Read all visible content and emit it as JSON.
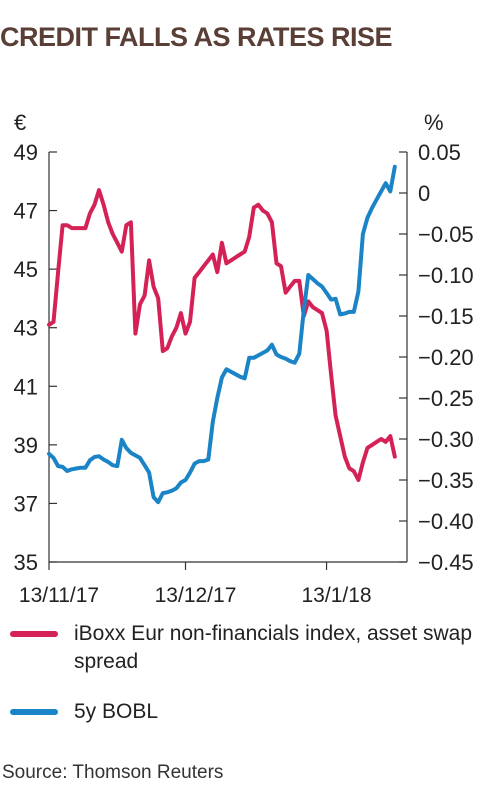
{
  "title": "CREDIT FALLS AS RATES RISE",
  "source": "Source: Thomson Reuters",
  "colors": {
    "title": "#5a3f37",
    "iboxx": "#d42257",
    "bobl": "#1a84c6"
  },
  "chart_data": {
    "type": "line",
    "title": "CREDIT FALLS AS RATES RISE",
    "left_axis": {
      "unit": "€",
      "min": 35,
      "max": 49,
      "ticks": [
        49,
        47,
        45,
        43,
        41,
        39,
        37,
        35
      ],
      "tick_labels": [
        "49",
        "47",
        "45",
        "43",
        "41",
        "39",
        "37",
        "35"
      ]
    },
    "right_axis": {
      "unit": "%",
      "min": -0.45,
      "max": 0.05,
      "ticks": [
        0.05,
        0,
        -0.05,
        -0.1,
        -0.15,
        -0.2,
        -0.25,
        -0.3,
        -0.35,
        -0.4,
        -0.45
      ],
      "tick_labels": [
        "0.05",
        "0",
        "−0.05",
        "−0.10",
        "−0.15",
        "−0.20",
        "−0.25",
        "−0.30",
        "−0.35",
        "−0.40",
        "−0.45"
      ]
    },
    "x_axis": {
      "tick_labels": [
        "13/11/17",
        "13/12/17",
        "13/1/18"
      ],
      "tick_days": [
        0,
        30,
        61
      ],
      "range_days": [
        0,
        80
      ]
    },
    "grid": false,
    "legend_position": "bottom",
    "series": [
      {
        "name": "iBoxx Eur non-financials index, asset swap spread",
        "axis": "left",
        "color": "#d42257",
        "points": [
          [
            0,
            43.1
          ],
          [
            1,
            43.2
          ],
          [
            2,
            44.9
          ],
          [
            3,
            46.5
          ],
          [
            4,
            46.5
          ],
          [
            5,
            46.4
          ],
          [
            6,
            46.4
          ],
          [
            7,
            46.4
          ],
          [
            8,
            46.4
          ],
          [
            9,
            46.9
          ],
          [
            10,
            47.2
          ],
          [
            11,
            47.7
          ],
          [
            12,
            47.2
          ],
          [
            13,
            46.6
          ],
          [
            14,
            46.2
          ],
          [
            15,
            45.9
          ],
          [
            16,
            45.6
          ],
          [
            17,
            46.5
          ],
          [
            18,
            46.6
          ],
          [
            19,
            42.8
          ],
          [
            20,
            43.8
          ],
          [
            21,
            44.1
          ],
          [
            22,
            45.3
          ],
          [
            23,
            44.4
          ],
          [
            24,
            44.0
          ],
          [
            25,
            42.2
          ],
          [
            26,
            42.3
          ],
          [
            27,
            42.7
          ],
          [
            28,
            43.0
          ],
          [
            29,
            43.5
          ],
          [
            30,
            42.8
          ],
          [
            31,
            43.2
          ],
          [
            32,
            44.7
          ],
          [
            33,
            44.9
          ],
          [
            34,
            45.1
          ],
          [
            35,
            45.3
          ],
          [
            36,
            45.5
          ],
          [
            37,
            44.9
          ],
          [
            38,
            45.9
          ],
          [
            39,
            45.2
          ],
          [
            40,
            45.3
          ],
          [
            41,
            45.4
          ],
          [
            42,
            45.5
          ],
          [
            43,
            45.6
          ],
          [
            44,
            46.1
          ],
          [
            45,
            47.1
          ],
          [
            46,
            47.2
          ],
          [
            47,
            47.0
          ],
          [
            48,
            46.9
          ],
          [
            49,
            46.6
          ],
          [
            50,
            45.2
          ],
          [
            51,
            45.1
          ],
          [
            52,
            44.2
          ],
          [
            53,
            44.4
          ],
          [
            54,
            44.6
          ],
          [
            55,
            44.6
          ],
          [
            56,
            43.4
          ],
          [
            57,
            43.9
          ],
          [
            58,
            43.7
          ],
          [
            59,
            43.6
          ],
          [
            60,
            43.5
          ],
          [
            61,
            42.9
          ],
          [
            62,
            41.4
          ],
          [
            63,
            40.0
          ],
          [
            64,
            39.3
          ],
          [
            65,
            38.6
          ],
          [
            66,
            38.2
          ],
          [
            67,
            38.1
          ],
          [
            68,
            37.8
          ],
          [
            69,
            38.4
          ],
          [
            70,
            38.9
          ],
          [
            71,
            39.0
          ],
          [
            72,
            39.1
          ],
          [
            73,
            39.2
          ],
          [
            74,
            39.1
          ],
          [
            75,
            39.3
          ],
          [
            76,
            38.6
          ]
        ]
      },
      {
        "name": "5y BOBL",
        "axis": "right",
        "color": "#1a84c6",
        "points": [
          [
            0,
            -0.318
          ],
          [
            1,
            -0.323
          ],
          [
            2,
            -0.333
          ],
          [
            3,
            -0.334
          ],
          [
            4,
            -0.339
          ],
          [
            5,
            -0.337
          ],
          [
            6,
            -0.336
          ],
          [
            7,
            -0.335
          ],
          [
            8,
            -0.335
          ],
          [
            9,
            -0.326
          ],
          [
            10,
            -0.322
          ],
          [
            11,
            -0.321
          ],
          [
            12,
            -0.325
          ],
          [
            13,
            -0.328
          ],
          [
            14,
            -0.332
          ],
          [
            15,
            -0.333
          ],
          [
            16,
            -0.301
          ],
          [
            17,
            -0.311
          ],
          [
            18,
            -0.317
          ],
          [
            19,
            -0.32
          ],
          [
            20,
            -0.323
          ],
          [
            21,
            -0.332
          ],
          [
            22,
            -0.341
          ],
          [
            23,
            -0.371
          ],
          [
            24,
            -0.377
          ],
          [
            25,
            -0.366
          ],
          [
            26,
            -0.365
          ],
          [
            27,
            -0.363
          ],
          [
            28,
            -0.36
          ],
          [
            29,
            -0.353
          ],
          [
            30,
            -0.35
          ],
          [
            31,
            -0.341
          ],
          [
            32,
            -0.33
          ],
          [
            33,
            -0.327
          ],
          [
            34,
            -0.327
          ],
          [
            35,
            -0.325
          ],
          [
            36,
            -0.279
          ],
          [
            37,
            -0.25
          ],
          [
            38,
            -0.225
          ],
          [
            39,
            -0.215
          ],
          [
            40,
            -0.218
          ],
          [
            41,
            -0.221
          ],
          [
            42,
            -0.224
          ],
          [
            43,
            -0.226
          ],
          [
            44,
            -0.201
          ],
          [
            45,
            -0.201
          ],
          [
            46,
            -0.198
          ],
          [
            47,
            -0.195
          ],
          [
            48,
            -0.192
          ],
          [
            49,
            -0.185
          ],
          [
            50,
            -0.197
          ],
          [
            51,
            -0.2
          ],
          [
            52,
            -0.202
          ],
          [
            53,
            -0.205
          ],
          [
            54,
            -0.207
          ],
          [
            55,
            -0.196
          ],
          [
            56,
            -0.143
          ],
          [
            57,
            -0.1
          ],
          [
            58,
            -0.105
          ],
          [
            59,
            -0.11
          ],
          [
            60,
            -0.114
          ],
          [
            61,
            -0.122
          ],
          [
            62,
            -0.13
          ],
          [
            63,
            -0.129
          ],
          [
            64,
            -0.148
          ],
          [
            65,
            -0.147
          ],
          [
            66,
            -0.145
          ],
          [
            67,
            -0.145
          ],
          [
            68,
            -0.12
          ],
          [
            69,
            -0.05
          ],
          [
            70,
            -0.03
          ],
          [
            71,
            -0.018
          ],
          [
            72,
            -0.008
          ],
          [
            73,
            0.002
          ],
          [
            74,
            0.012
          ],
          [
            75,
            0.002
          ],
          [
            76,
            0.032
          ]
        ]
      }
    ]
  }
}
